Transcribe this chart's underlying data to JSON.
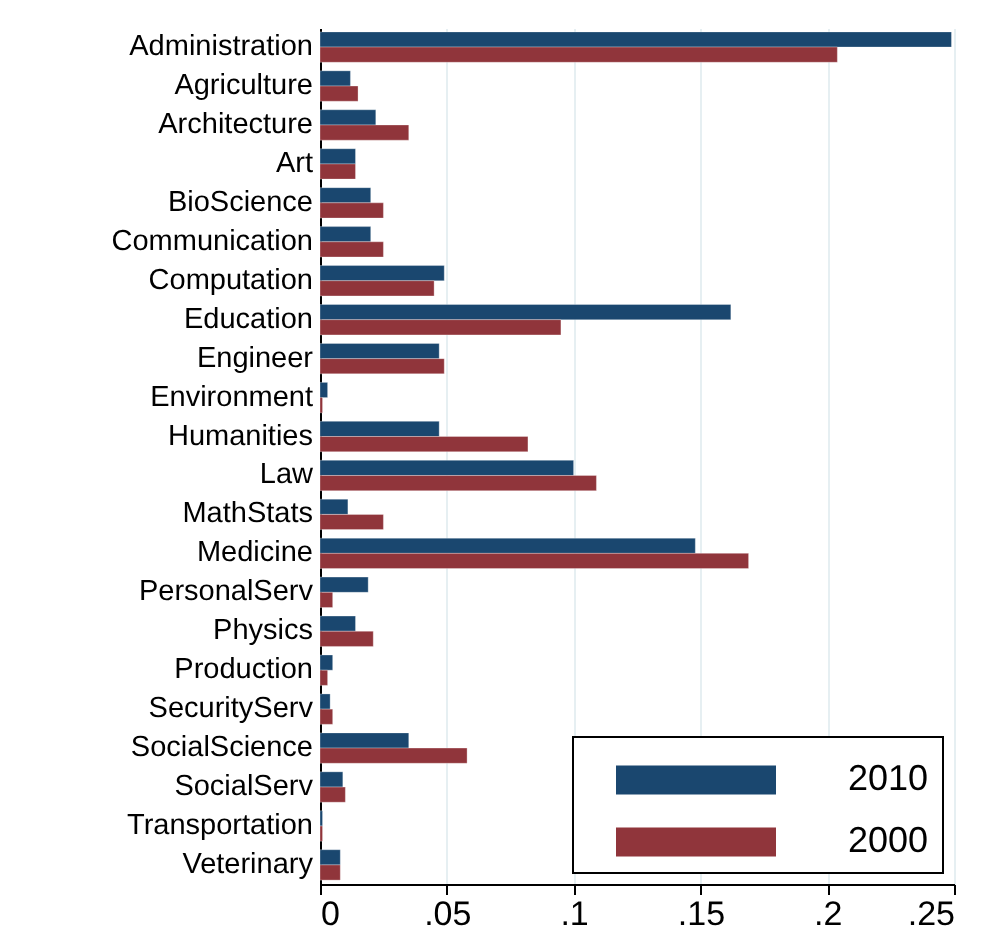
{
  "chart_data": {
    "type": "bar",
    "orientation": "horizontal",
    "categories": [
      "Administration",
      "Agriculture",
      "Architecture",
      "Art",
      "BioScience",
      "Communication",
      "Computation",
      "Education",
      "Engineer",
      "Environment",
      "Humanities",
      "Law",
      "MathStats",
      "Medicine",
      "PersonalServ",
      "Physics",
      "Production",
      "SecurityServ",
      "SocialScience",
      "SocialServ",
      "Transportation",
      "Veterinary"
    ],
    "series": [
      {
        "name": "2010",
        "color": "#1a476f",
        "values": [
          0.249,
          0.012,
          0.022,
          0.014,
          0.02,
          0.02,
          0.049,
          0.162,
          0.047,
          0.003,
          0.047,
          0.1,
          0.011,
          0.148,
          0.019,
          0.014,
          0.005,
          0.004,
          0.035,
          0.009,
          0.001,
          0.008
        ]
      },
      {
        "name": "2000",
        "color": "#90353b",
        "values": [
          0.204,
          0.015,
          0.035,
          0.014,
          0.025,
          0.025,
          0.045,
          0.095,
          0.049,
          0.001,
          0.082,
          0.109,
          0.025,
          0.169,
          0.005,
          0.021,
          0.003,
          0.005,
          0.058,
          0.01,
          0.001,
          0.008
        ]
      }
    ],
    "xlim": [
      0,
      0.25
    ],
    "xticks": [
      {
        "value": 0,
        "label": "0"
      },
      {
        "value": 0.05,
        "label": ".05"
      },
      {
        "value": 0.1,
        "label": ".1"
      },
      {
        "value": 0.15,
        "label": ".15"
      },
      {
        "value": 0.2,
        "label": ".2"
      },
      {
        "value": 0.25,
        "label": ".25"
      }
    ],
    "grid": "x",
    "legend": "bottom right"
  }
}
